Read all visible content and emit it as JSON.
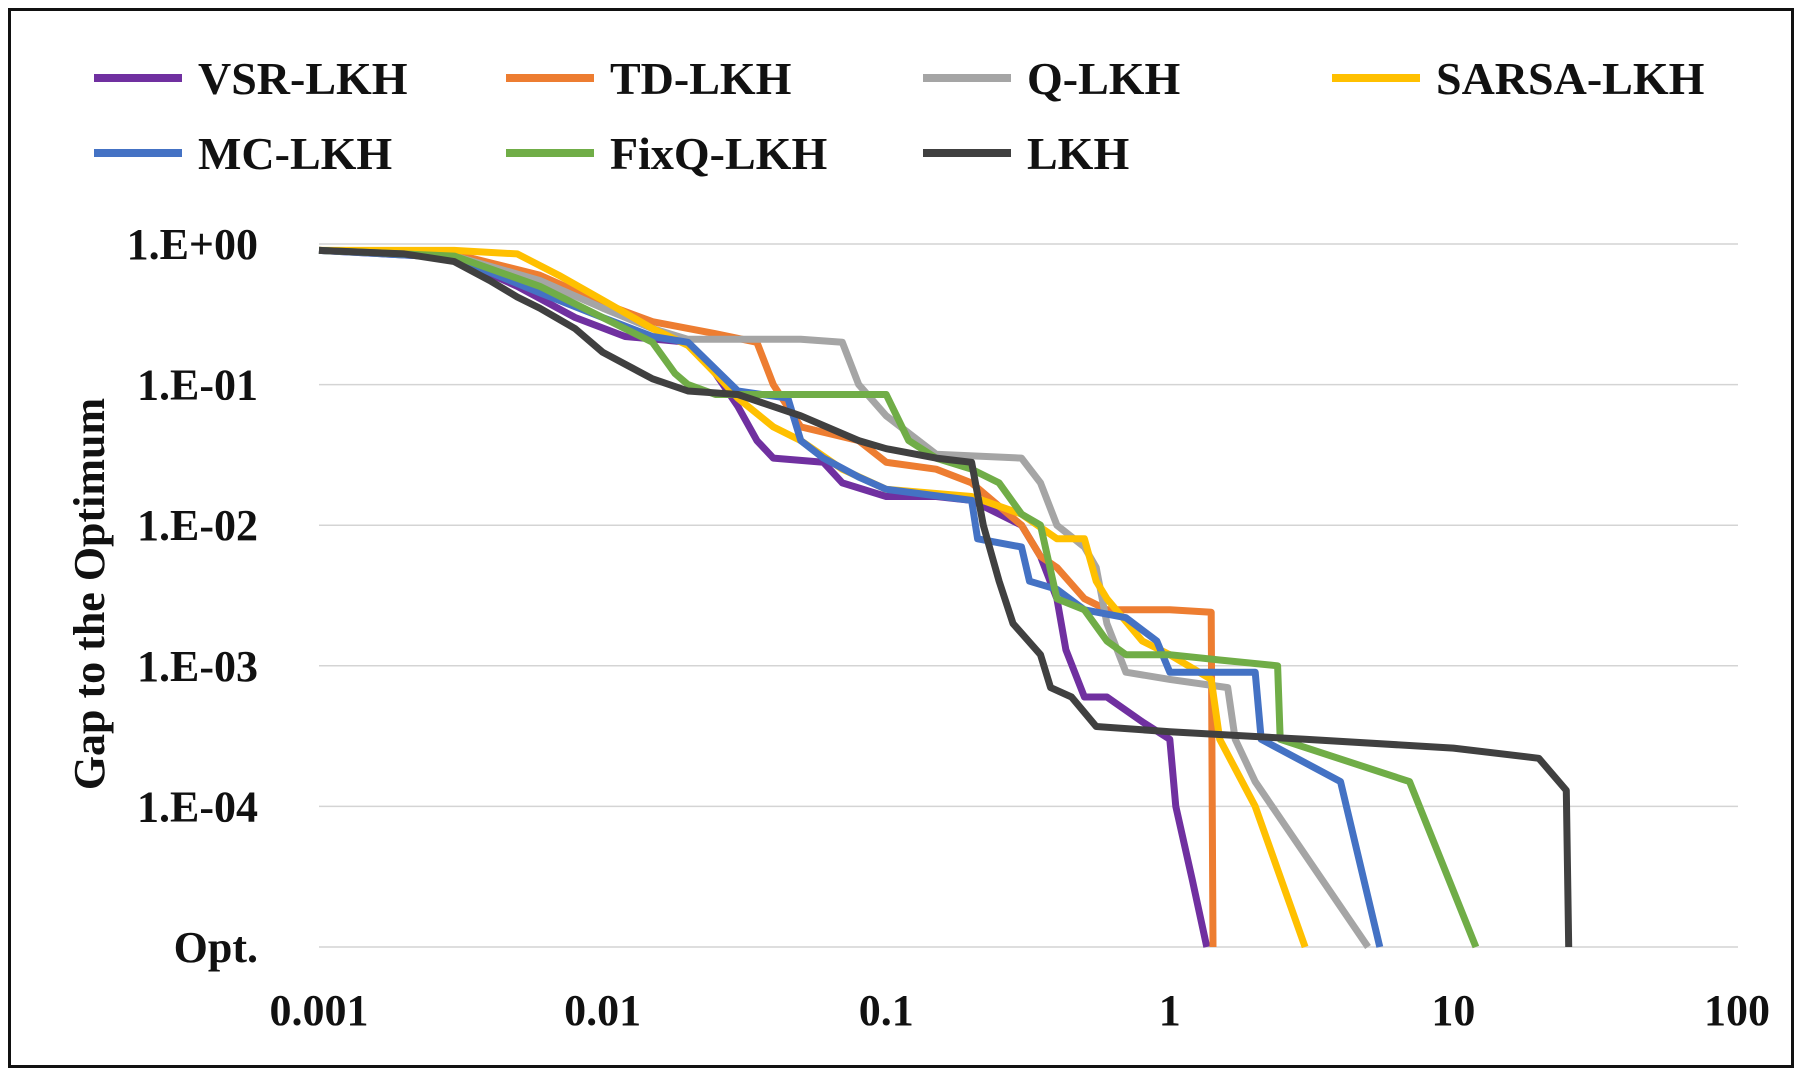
{
  "chart_data": {
    "type": "line",
    "title": "",
    "xlabel": "",
    "ylabel": "Gap to the Optimum",
    "x_scale": "log",
    "xlim": [
      0.001,
      100
    ],
    "x_ticks": [
      0.001,
      0.01,
      0.1,
      1,
      10,
      100
    ],
    "x_tick_labels": [
      "0.001",
      "0.01",
      "0.1",
      "1",
      "10",
      "100"
    ],
    "y_scale": "log",
    "ylim": [
      1e-05,
      1
    ],
    "y_ticks": [
      1,
      0.1,
      0.01,
      0.001,
      0.0001,
      1e-05
    ],
    "y_tick_labels": [
      "1.E+00",
      "1.E-01",
      "1.E-02",
      "1.E-03",
      "1.E-04",
      "Opt."
    ],
    "opt_note": "Opt. = gap of 0 (optimum reached), drawn at the bottom of the axis",
    "grid": true,
    "legend_position": "top",
    "series": [
      {
        "name": "VSR-LKH",
        "color": "#7030A0",
        "points": [
          [
            0.001,
            0.9
          ],
          [
            0.003,
            0.8
          ],
          [
            0.005,
            0.5
          ],
          [
            0.008,
            0.3
          ],
          [
            0.012,
            0.22
          ],
          [
            0.02,
            0.2
          ],
          [
            0.025,
            0.12
          ],
          [
            0.03,
            0.07
          ],
          [
            0.035,
            0.04
          ],
          [
            0.04,
            0.03
          ],
          [
            0.06,
            0.028
          ],
          [
            0.07,
            0.02
          ],
          [
            0.1,
            0.016
          ],
          [
            0.15,
            0.016
          ],
          [
            0.2,
            0.015
          ],
          [
            0.3,
            0.01
          ],
          [
            0.35,
            0.006
          ],
          [
            0.4,
            0.003
          ],
          [
            0.43,
            0.0013
          ],
          [
            0.5,
            0.0006
          ],
          [
            0.6,
            0.0006
          ],
          [
            0.8,
            0.0004
          ],
          [
            1.0,
            0.0003
          ],
          [
            1.05,
            0.0001
          ],
          [
            1.2,
            3e-05
          ],
          [
            1.35,
            1e-05
          ]
        ]
      },
      {
        "name": "TD-LKH",
        "color": "#ED7D31",
        "points": [
          [
            0.001,
            0.9
          ],
          [
            0.003,
            0.85
          ],
          [
            0.006,
            0.6
          ],
          [
            0.01,
            0.38
          ],
          [
            0.015,
            0.28
          ],
          [
            0.025,
            0.23
          ],
          [
            0.035,
            0.2
          ],
          [
            0.04,
            0.1
          ],
          [
            0.05,
            0.05
          ],
          [
            0.08,
            0.04
          ],
          [
            0.1,
            0.028
          ],
          [
            0.15,
            0.025
          ],
          [
            0.2,
            0.02
          ],
          [
            0.3,
            0.01
          ],
          [
            0.35,
            0.006
          ],
          [
            0.4,
            0.005
          ],
          [
            0.5,
            0.003
          ],
          [
            0.6,
            0.0025
          ],
          [
            1.0,
            0.0025
          ],
          [
            1.4,
            0.0024
          ],
          [
            1.42,
            1e-05
          ]
        ]
      },
      {
        "name": "Q-LKH",
        "color": "#A5A5A5",
        "points": [
          [
            0.001,
            0.9
          ],
          [
            0.003,
            0.82
          ],
          [
            0.006,
            0.55
          ],
          [
            0.01,
            0.35
          ],
          [
            0.015,
            0.25
          ],
          [
            0.02,
            0.21
          ],
          [
            0.05,
            0.21
          ],
          [
            0.07,
            0.2
          ],
          [
            0.08,
            0.1
          ],
          [
            0.1,
            0.06
          ],
          [
            0.15,
            0.032
          ],
          [
            0.3,
            0.03
          ],
          [
            0.35,
            0.02
          ],
          [
            0.4,
            0.01
          ],
          [
            0.5,
            0.007
          ],
          [
            0.55,
            0.005
          ],
          [
            0.6,
            0.002
          ],
          [
            0.7,
            0.0009
          ],
          [
            1.0,
            0.0008
          ],
          [
            1.6,
            0.0007
          ],
          [
            1.7,
            0.0003
          ],
          [
            2.0,
            0.00015
          ],
          [
            5.0,
            1e-05
          ]
        ]
      },
      {
        "name": "SARSA-LKH",
        "color": "#FFC000",
        "points": [
          [
            0.001,
            0.9
          ],
          [
            0.003,
            0.9
          ],
          [
            0.005,
            0.85
          ],
          [
            0.007,
            0.6
          ],
          [
            0.01,
            0.4
          ],
          [
            0.015,
            0.25
          ],
          [
            0.02,
            0.19
          ],
          [
            0.025,
            0.12
          ],
          [
            0.03,
            0.08
          ],
          [
            0.04,
            0.05
          ],
          [
            0.05,
            0.04
          ],
          [
            0.07,
            0.025
          ],
          [
            0.1,
            0.018
          ],
          [
            0.2,
            0.016
          ],
          [
            0.3,
            0.012
          ],
          [
            0.4,
            0.008
          ],
          [
            0.5,
            0.008
          ],
          [
            0.55,
            0.004
          ],
          [
            0.6,
            0.003
          ],
          [
            0.8,
            0.0015
          ],
          [
            1.0,
            0.0012
          ],
          [
            1.4,
            0.0008
          ],
          [
            1.5,
            0.0003
          ],
          [
            2.0,
            0.0001
          ],
          [
            3.0,
            1e-05
          ]
        ]
      },
      {
        "name": "MC-LKH",
        "color": "#4472C4",
        "points": [
          [
            0.001,
            0.9
          ],
          [
            0.003,
            0.8
          ],
          [
            0.006,
            0.45
          ],
          [
            0.01,
            0.3
          ],
          [
            0.015,
            0.22
          ],
          [
            0.02,
            0.2
          ],
          [
            0.03,
            0.09
          ],
          [
            0.045,
            0.08
          ],
          [
            0.05,
            0.04
          ],
          [
            0.06,
            0.03
          ],
          [
            0.08,
            0.022
          ],
          [
            0.1,
            0.018
          ],
          [
            0.2,
            0.015
          ],
          [
            0.21,
            0.008
          ],
          [
            0.3,
            0.007
          ],
          [
            0.32,
            0.004
          ],
          [
            0.4,
            0.0035
          ],
          [
            0.5,
            0.0025
          ],
          [
            0.7,
            0.0022
          ],
          [
            0.9,
            0.0015
          ],
          [
            1.0,
            0.0009
          ],
          [
            2.0,
            0.0009
          ],
          [
            2.1,
            0.0003
          ],
          [
            4.0,
            0.00015
          ],
          [
            5.5,
            1e-05
          ]
        ]
      },
      {
        "name": "FixQ-LKH",
        "color": "#70AD47",
        "points": [
          [
            0.001,
            0.9
          ],
          [
            0.003,
            0.82
          ],
          [
            0.006,
            0.5
          ],
          [
            0.01,
            0.3
          ],
          [
            0.015,
            0.2
          ],
          [
            0.018,
            0.12
          ],
          [
            0.02,
            0.1
          ],
          [
            0.025,
            0.085
          ],
          [
            0.1,
            0.085
          ],
          [
            0.12,
            0.04
          ],
          [
            0.15,
            0.03
          ],
          [
            0.2,
            0.025
          ],
          [
            0.25,
            0.02
          ],
          [
            0.3,
            0.012
          ],
          [
            0.35,
            0.01
          ],
          [
            0.4,
            0.003
          ],
          [
            0.5,
            0.0025
          ],
          [
            0.6,
            0.0015
          ],
          [
            0.7,
            0.0012
          ],
          [
            1.0,
            0.0012
          ],
          [
            1.5,
            0.0011
          ],
          [
            2.4,
            0.001
          ],
          [
            2.45,
            0.0003
          ],
          [
            7.0,
            0.00015
          ],
          [
            12.0,
            1e-05
          ]
        ]
      },
      {
        "name": "LKH",
        "color": "#404040",
        "points": [
          [
            0.001,
            0.9
          ],
          [
            0.002,
            0.85
          ],
          [
            0.003,
            0.75
          ],
          [
            0.004,
            0.55
          ],
          [
            0.005,
            0.42
          ],
          [
            0.006,
            0.35
          ],
          [
            0.008,
            0.25
          ],
          [
            0.01,
            0.17
          ],
          [
            0.015,
            0.11
          ],
          [
            0.02,
            0.09
          ],
          [
            0.03,
            0.085
          ],
          [
            0.05,
            0.06
          ],
          [
            0.08,
            0.04
          ],
          [
            0.1,
            0.035
          ],
          [
            0.15,
            0.03
          ],
          [
            0.2,
            0.028
          ],
          [
            0.22,
            0.01
          ],
          [
            0.25,
            0.004
          ],
          [
            0.28,
            0.002
          ],
          [
            0.35,
            0.0012
          ],
          [
            0.38,
            0.0007
          ],
          [
            0.45,
            0.0006
          ],
          [
            0.55,
            0.00037
          ],
          [
            1.0,
            0.00034
          ],
          [
            3.0,
            0.0003
          ],
          [
            10.0,
            0.00026
          ],
          [
            20.0,
            0.00022
          ],
          [
            25.0,
            0.00013
          ],
          [
            25.5,
            1e-05
          ]
        ]
      }
    ]
  }
}
